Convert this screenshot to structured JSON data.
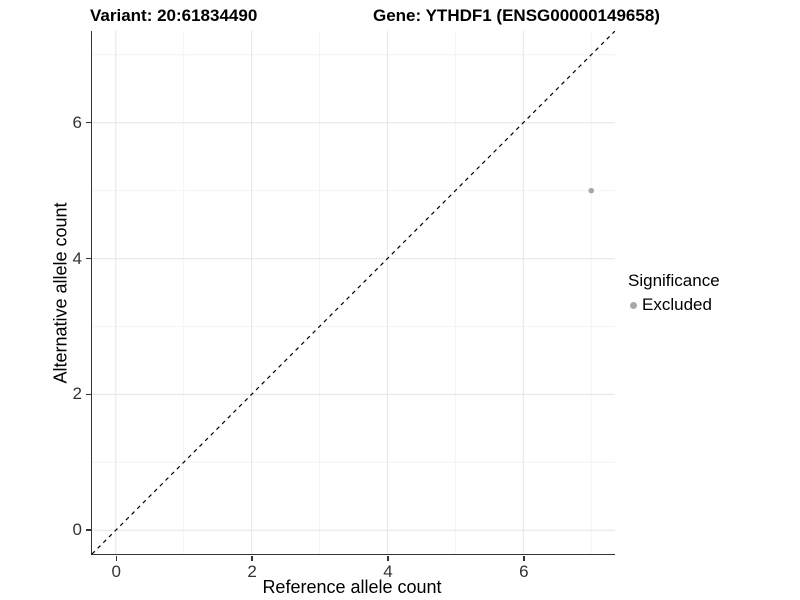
{
  "header": {
    "title_left": "Variant: 20:61834490",
    "title_right": "Gene: YTHDF1 (ENSG00000149658)"
  },
  "chart_data": {
    "type": "scatter",
    "xlabel": "Reference allele count",
    "ylabel": "Alternative allele count",
    "xlim": [
      -0.35,
      7.35
    ],
    "ylim": [
      -0.35,
      7.35
    ],
    "x_major_ticks": [
      0,
      2,
      4,
      6
    ],
    "y_major_ticks": [
      0,
      2,
      4,
      6
    ],
    "x_minor_ticks": [
      1,
      3,
      5,
      7
    ],
    "y_minor_ticks": [
      1,
      3,
      5,
      7
    ],
    "grid": true,
    "series": [
      {
        "name": "Excluded",
        "color": "#a8a8a8",
        "points": [
          {
            "x": 7,
            "y": 5
          }
        ]
      }
    ],
    "reference_line": {
      "style": "dashed",
      "slope": 1,
      "intercept": 0,
      "color": "#000000"
    },
    "legend": {
      "title": "Significance",
      "position": "right",
      "entries": [
        {
          "label": "Excluded",
          "color": "#a8a8a8"
        }
      ]
    }
  },
  "colors": {
    "grid_major": "#e8e8e8",
    "grid_minor": "#f4f4f4",
    "axis_line": "#333333",
    "tick_text": "#333333"
  }
}
